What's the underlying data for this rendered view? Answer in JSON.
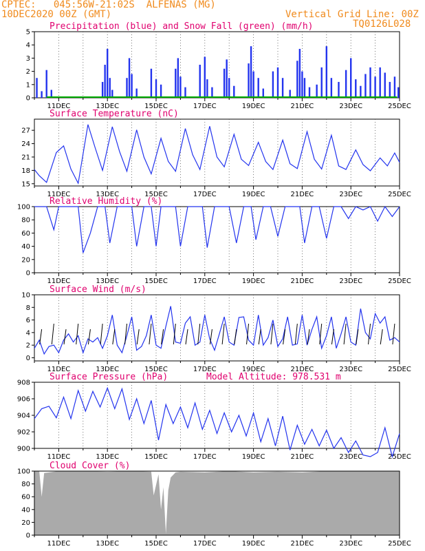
{
  "header": {
    "line1": "CPTEC:   045:56W-21:02S  ALFENAS (MG)",
    "line2": "10DEC2020 00Z (GMT)",
    "grid_note": "Vertical Grid Line: 00Z",
    "run_code": "TQ0126L028"
  },
  "colors": {
    "header": "#f08a1c",
    "title": "#e0006e",
    "line": "#2233ee",
    "precip": "#2233ee",
    "snow": "#00aa00",
    "cloud": "#aaaaaa"
  },
  "x_ticks": [
    "11DEC",
    "13DEC",
    "15DEC",
    "17DEC",
    "19DEC",
    "21DEC",
    "23DEC",
    "25DEC"
  ],
  "chart_data": [
    {
      "type": "bar",
      "title": "Precipitation (blue) and Snow Fall (green) (mm/h)",
      "ylim": [
        0,
        5
      ],
      "yticks": [
        0,
        1,
        2,
        3,
        4,
        5
      ],
      "x_range_days": [
        10,
        25
      ],
      "series": [
        {
          "name": "Precipitation",
          "x": [
            10.1,
            10.3,
            10.5,
            10.7,
            12.8,
            12.9,
            13.0,
            13.1,
            13.2,
            13.8,
            13.9,
            14.0,
            14.2,
            14.8,
            15.0,
            15.2,
            15.8,
            15.9,
            16.0,
            16.2,
            16.8,
            17.0,
            17.1,
            17.3,
            17.8,
            17.9,
            18.0,
            18.2,
            18.8,
            18.9,
            19.0,
            19.2,
            19.4,
            19.8,
            20.0,
            20.2,
            20.5,
            20.8,
            20.9,
            21.0,
            21.1,
            21.3,
            21.6,
            21.8,
            22.0,
            22.2,
            22.5,
            22.8,
            23.0,
            23.2,
            23.4,
            23.6,
            23.8,
            24.0,
            24.2,
            24.4,
            24.6,
            24.8,
            24.95
          ],
          "values": [
            1.5,
            0.5,
            2.1,
            0.6,
            1.2,
            2.5,
            3.7,
            1.5,
            0.6,
            1.5,
            3.0,
            1.8,
            0.7,
            2.2,
            1.4,
            1.0,
            2.2,
            3.0,
            1.6,
            0.8,
            2.5,
            3.1,
            1.4,
            0.8,
            2.2,
            2.9,
            1.5,
            0.9,
            2.6,
            3.9,
            2.0,
            1.5,
            0.7,
            2.0,
            2.3,
            1.5,
            0.6,
            2.8,
            3.7,
            2.0,
            1.5,
            0.8,
            1.0,
            2.3,
            3.9,
            1.5,
            1.2,
            2.1,
            3.0,
            1.4,
            0.9,
            1.8,
            2.3,
            1.6,
            2.3,
            1.9,
            1.2,
            1.6,
            0.8
          ]
        },
        {
          "name": "Snow Fall",
          "x": [
            10.5,
            24.9
          ],
          "values": [
            0,
            0
          ]
        }
      ]
    },
    {
      "type": "line",
      "title": "Surface Temperature (nC)",
      "ylim": [
        14.5,
        29.5
      ],
      "yticks": [
        15,
        18,
        21,
        24,
        27
      ],
      "series": [
        {
          "name": "Temperature",
          "x": [
            10.0,
            10.2,
            10.5,
            10.9,
            11.2,
            11.5,
            11.8,
            12.2,
            12.5,
            12.8,
            13.2,
            13.5,
            13.8,
            14.2,
            14.5,
            14.8,
            15.2,
            15.5,
            15.8,
            16.2,
            16.5,
            16.8,
            17.2,
            17.5,
            17.8,
            18.2,
            18.5,
            18.8,
            19.2,
            19.5,
            19.8,
            20.2,
            20.5,
            20.8,
            21.2,
            21.5,
            21.8,
            22.2,
            22.5,
            22.8,
            23.2,
            23.5,
            23.8,
            24.2,
            24.5,
            24.8,
            25.0
          ],
          "values": [
            18.2,
            16.8,
            15.3,
            22.0,
            23.5,
            18.3,
            15.1,
            28.3,
            23.0,
            18.0,
            27.8,
            22.2,
            17.8,
            27.1,
            21.0,
            17.2,
            25.2,
            20.0,
            17.8,
            27.4,
            21.5,
            18.2,
            27.9,
            21.0,
            18.8,
            26.1,
            20.5,
            19.1,
            24.3,
            20.0,
            18.2,
            24.8,
            19.5,
            18.4,
            26.7,
            20.5,
            18.3,
            25.9,
            19.0,
            18.2,
            22.6,
            19.3,
            17.9,
            20.8,
            19.0,
            21.9,
            19.8
          ]
        }
      ]
    },
    {
      "type": "line",
      "title": "Relative Humidity (%)",
      "ylim": [
        0,
        100
      ],
      "yticks": [
        0,
        20,
        40,
        60,
        80,
        100
      ],
      "series": [
        {
          "name": "Relative Humidity",
          "x": [
            10.0,
            10.2,
            10.5,
            10.8,
            11.0,
            11.2,
            11.5,
            11.8,
            12.0,
            12.3,
            12.6,
            12.9,
            13.1,
            13.4,
            13.7,
            14.0,
            14.2,
            14.5,
            14.8,
            15.0,
            15.2,
            15.5,
            15.8,
            16.0,
            16.3,
            16.6,
            16.9,
            17.1,
            17.4,
            17.7,
            18.0,
            18.3,
            18.6,
            18.9,
            19.1,
            19.4,
            19.7,
            20.0,
            20.3,
            20.6,
            20.9,
            21.1,
            21.4,
            21.7,
            22.0,
            22.3,
            22.6,
            22.9,
            23.2,
            23.5,
            23.8,
            24.1,
            24.4,
            24.7,
            25.0
          ],
          "values": [
            100,
            100,
            100,
            65,
            100,
            100,
            100,
            100,
            30,
            60,
            100,
            100,
            45,
            100,
            100,
            100,
            40,
            100,
            100,
            40,
            100,
            100,
            100,
            40,
            100,
            100,
            100,
            38,
            100,
            100,
            100,
            45,
            100,
            100,
            50,
            100,
            100,
            55,
            100,
            100,
            100,
            45,
            100,
            100,
            52,
            100,
            100,
            82,
            100,
            95,
            100,
            78,
            100,
            85,
            100
          ]
        }
      ]
    },
    {
      "type": "line",
      "title": "Surface Wind (m/s)",
      "ylim": [
        -0.5,
        10
      ],
      "yticks": [
        0,
        2,
        4,
        6,
        8,
        10
      ],
      "series": [
        {
          "name": "Wind speed",
          "x": [
            10.0,
            10.2,
            10.4,
            10.6,
            10.8,
            11.0,
            11.2,
            11.4,
            11.6,
            11.8,
            12.0,
            12.2,
            12.4,
            12.6,
            12.8,
            13.0,
            13.2,
            13.4,
            13.6,
            13.8,
            14.0,
            14.2,
            14.4,
            14.6,
            14.8,
            15.0,
            15.2,
            15.4,
            15.6,
            15.8,
            16.0,
            16.2,
            16.4,
            16.6,
            16.8,
            17.0,
            17.2,
            17.4,
            17.6,
            17.8,
            18.0,
            18.2,
            18.4,
            18.6,
            18.8,
            19.0,
            19.2,
            19.4,
            19.6,
            19.8,
            20.0,
            20.2,
            20.4,
            20.6,
            20.8,
            21.0,
            21.2,
            21.4,
            21.6,
            21.8,
            22.0,
            22.2,
            22.4,
            22.6,
            22.8,
            23.0,
            23.2,
            23.4,
            23.6,
            23.8,
            24.0,
            24.2,
            24.4,
            24.6,
            24.8,
            25.0
          ],
          "values": [
            1.5,
            2.8,
            0.6,
            1.8,
            2.0,
            0.8,
            2.8,
            3.8,
            2.5,
            3.5,
            0.8,
            3.0,
            2.5,
            3.2,
            1.5,
            3.5,
            6.8,
            2.0,
            0.8,
            3.5,
            6.5,
            1.2,
            1.8,
            3.5,
            6.8,
            2.0,
            1.5,
            5.0,
            8.2,
            2.5,
            2.3,
            5.5,
            6.5,
            2.0,
            2.5,
            6.8,
            3.0,
            1.2,
            3.8,
            6.5,
            2.5,
            2.0,
            6.4,
            6.5,
            2.8,
            2.0,
            6.8,
            2.0,
            3.2,
            6.0,
            1.8,
            3.0,
            6.5,
            2.0,
            2.2,
            6.8,
            2.0,
            4.5,
            6.5,
            1.5,
            3.5,
            6.5,
            1.5,
            3.8,
            6.5,
            2.5,
            2.0,
            7.8,
            4.0,
            3.0,
            7.0,
            5.5,
            6.5,
            2.8,
            3.2,
            2.5
          ]
        }
      ]
    },
    {
      "type": "line",
      "title": "Surface Pressure (hPa)",
      "subtitle": "Model Altitude: 978.531 m",
      "ylim": [
        900,
        908
      ],
      "yticks": [
        900,
        902,
        904,
        906,
        908
      ],
      "series": [
        {
          "name": "Pressure",
          "x": [
            10.0,
            10.3,
            10.6,
            10.9,
            11.2,
            11.5,
            11.8,
            12.1,
            12.4,
            12.7,
            13.0,
            13.3,
            13.6,
            13.9,
            14.2,
            14.5,
            14.8,
            15.1,
            15.4,
            15.7,
            16.0,
            16.3,
            16.6,
            16.9,
            17.2,
            17.5,
            17.8,
            18.1,
            18.4,
            18.7,
            19.0,
            19.3,
            19.6,
            19.9,
            20.2,
            20.5,
            20.8,
            21.1,
            21.4,
            21.7,
            22.0,
            22.3,
            22.6,
            22.9,
            23.2,
            23.5,
            23.8,
            24.1,
            24.4,
            24.7,
            25.0
          ],
          "values": [
            903.6,
            904.8,
            905.1,
            903.7,
            906.2,
            903.6,
            907.0,
            904.5,
            906.9,
            905.0,
            907.3,
            904.8,
            907.2,
            903.5,
            906.0,
            903.0,
            905.8,
            901.0,
            905.3,
            903.0,
            905.0,
            902.5,
            905.5,
            902.3,
            904.6,
            901.8,
            904.3,
            902.0,
            904.0,
            901.5,
            904.3,
            900.8,
            903.6,
            900.3,
            903.9,
            899.8,
            902.8,
            900.5,
            902.3,
            900.3,
            902.2,
            900.0,
            901.3,
            899.5,
            900.9,
            899.2,
            899.0,
            899.5,
            902.5,
            899.0,
            901.8
          ]
        }
      ]
    },
    {
      "type": "area",
      "title": "Cloud Cover (%)",
      "ylim": [
        0,
        100
      ],
      "yticks": [
        0,
        20,
        40,
        60,
        80,
        100
      ],
      "series": [
        {
          "name": "Cloud Cover",
          "x": [
            10.0,
            10.2,
            10.3,
            10.4,
            10.6,
            11.0,
            12.0,
            13.0,
            14.0,
            14.8,
            14.9,
            15.1,
            15.2,
            15.3,
            15.4,
            15.5,
            15.6,
            15.8,
            16.0,
            17.0,
            18.0,
            19.0,
            20.0,
            21.0,
            22.0,
            23.0,
            24.0,
            25.0
          ],
          "values": [
            100,
            100,
            60,
            97,
            98,
            100,
            100,
            99,
            100,
            99,
            62,
            95,
            40,
            75,
            2,
            70,
            90,
            98,
            99,
            98,
            100,
            98,
            99,
            98,
            100,
            100,
            100,
            100
          ]
        }
      ]
    }
  ]
}
